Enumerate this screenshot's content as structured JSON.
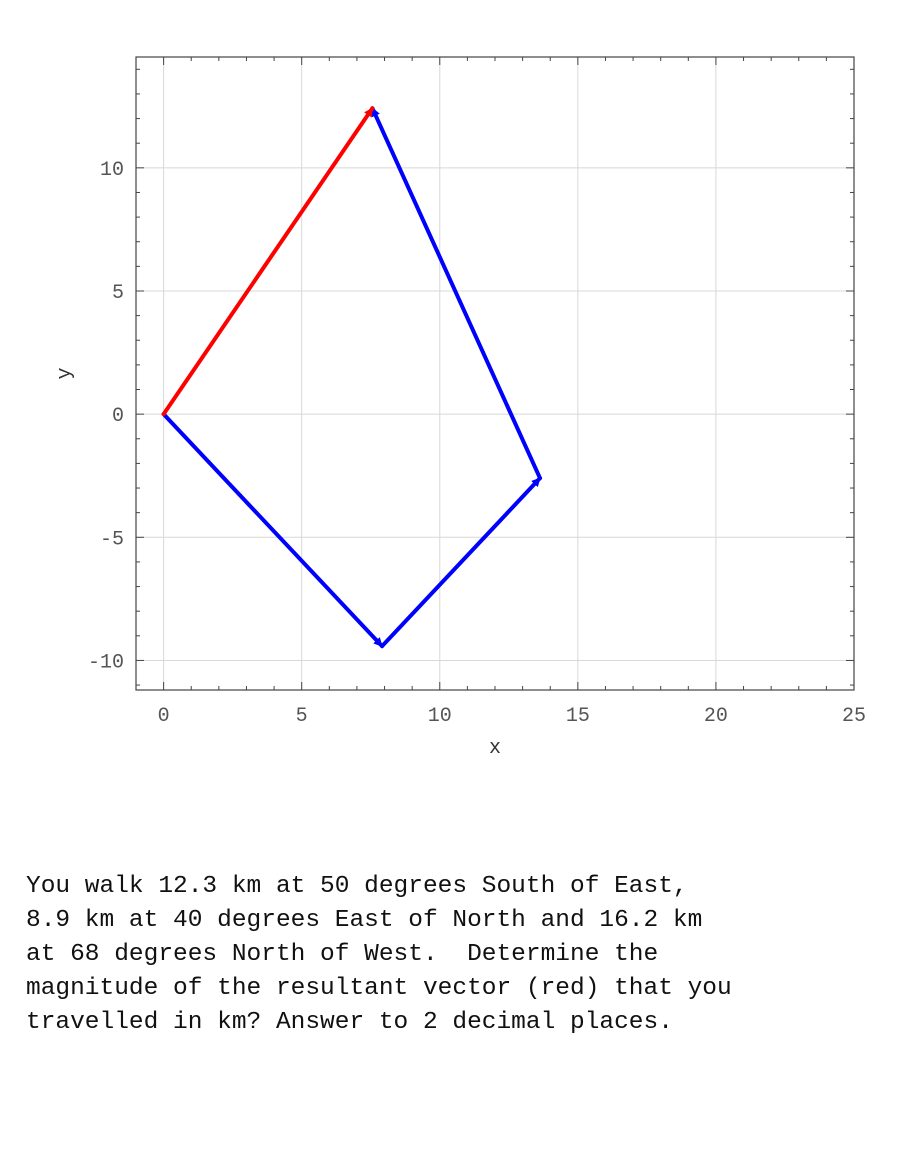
{
  "chart_data": {
    "type": "vector-plot",
    "xlabel": "x",
    "ylabel": "y",
    "xlim": [
      -1,
      25
    ],
    "ylim": [
      -11.2,
      14.5
    ],
    "xticks": [
      0,
      5,
      10,
      15,
      20,
      25
    ],
    "yticks": [
      -10,
      -5,
      0,
      5,
      10
    ],
    "grid": true,
    "vectors": [
      {
        "start": [
          0,
          0
        ],
        "end": [
          7.91,
          -9.42
        ],
        "color": "#0000ff"
      },
      {
        "start": [
          7.91,
          -9.42
        ],
        "end": [
          13.63,
          -2.6
        ],
        "color": "#0000ff"
      },
      {
        "start": [
          13.63,
          -2.6
        ],
        "end": [
          7.56,
          12.42
        ],
        "color": "#0000ff"
      },
      {
        "start": [
          0,
          0
        ],
        "end": [
          7.56,
          12.42
        ],
        "color": "#ff0000"
      }
    ]
  },
  "question": {
    "lines": [
      "You walk 12.3 km at 50 degrees South of East,",
      "8.9 km at 40 degrees East of North and 16.2 km",
      "at 68 degrees North of West.  Determine the",
      "magnitude of the resultant vector (red) that you",
      "travelled in km? Answer to 2 decimal places."
    ]
  }
}
